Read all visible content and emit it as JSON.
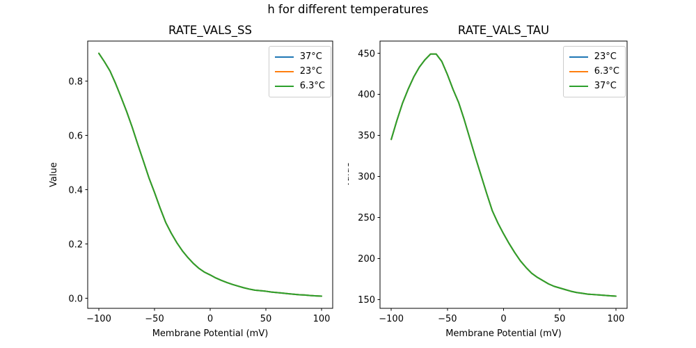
{
  "figure": {
    "title": "h for different temperatures"
  },
  "chart_data": [
    {
      "type": "line",
      "title": "RATE_VALS_SS",
      "xlabel": "Membrane Potential (mV)",
      "ylabel": "Value",
      "xlim": [
        -110,
        110
      ],
      "ylim": [
        -0.037,
        0.948
      ],
      "grid": false,
      "legend_position": "upper right",
      "xticks": {
        "values": [
          -100,
          -50,
          0,
          50,
          100
        ],
        "labels": [
          "−100",
          "−50",
          "0",
          "50",
          "100"
        ]
      },
      "yticks": {
        "values": [
          0.0,
          0.2,
          0.4,
          0.6,
          0.8
        ],
        "labels": [
          "0.0",
          "0.2",
          "0.4",
          "0.6",
          "0.8"
        ]
      },
      "x": [
        -100,
        -95,
        -90,
        -85,
        -80,
        -75,
        -70,
        -65,
        -60,
        -55,
        -50,
        -45,
        -40,
        -35,
        -30,
        -25,
        -20,
        -15,
        -10,
        -5,
        0,
        5,
        10,
        15,
        20,
        25,
        30,
        35,
        40,
        45,
        50,
        55,
        60,
        65,
        70,
        75,
        80,
        85,
        90,
        95,
        100
      ],
      "series": [
        {
          "name": "37°C",
          "color": "#1f77b4",
          "values": [
            0.903,
            0.872,
            0.838,
            0.792,
            0.741,
            0.688,
            0.63,
            0.567,
            0.506,
            0.444,
            0.39,
            0.333,
            0.28,
            0.24,
            0.205,
            0.175,
            0.15,
            0.128,
            0.11,
            0.096,
            0.086,
            0.075,
            0.066,
            0.058,
            0.051,
            0.045,
            0.039,
            0.034,
            0.03,
            0.028,
            0.026,
            0.023,
            0.021,
            0.019,
            0.017,
            0.015,
            0.013,
            0.012,
            0.01,
            0.009,
            0.008
          ]
        },
        {
          "name": "23°C",
          "color": "#ff7f0e",
          "values": [
            0.903,
            0.872,
            0.838,
            0.792,
            0.741,
            0.688,
            0.63,
            0.567,
            0.506,
            0.444,
            0.39,
            0.333,
            0.28,
            0.24,
            0.205,
            0.175,
            0.15,
            0.128,
            0.11,
            0.096,
            0.086,
            0.075,
            0.066,
            0.058,
            0.051,
            0.045,
            0.039,
            0.034,
            0.03,
            0.028,
            0.026,
            0.023,
            0.021,
            0.019,
            0.017,
            0.015,
            0.013,
            0.012,
            0.01,
            0.009,
            0.008
          ]
        },
        {
          "name": "6.3°C",
          "color": "#2ca02c",
          "values": [
            0.903,
            0.872,
            0.838,
            0.792,
            0.741,
            0.688,
            0.63,
            0.567,
            0.506,
            0.444,
            0.39,
            0.333,
            0.28,
            0.24,
            0.205,
            0.175,
            0.15,
            0.128,
            0.11,
            0.096,
            0.086,
            0.075,
            0.066,
            0.058,
            0.051,
            0.045,
            0.039,
            0.034,
            0.03,
            0.028,
            0.026,
            0.023,
            0.021,
            0.019,
            0.017,
            0.015,
            0.013,
            0.012,
            0.01,
            0.009,
            0.008
          ]
        }
      ],
      "note": "all three temperature curves overlap exactly; only the last-drawn green line is visible"
    },
    {
      "type": "line",
      "title": "RATE_VALS_TAU",
      "xlabel": "Membrane Potential (mV)",
      "ylabel": "Value",
      "xlim": [
        -110,
        110
      ],
      "ylim": [
        139.2,
        464.8
      ],
      "grid": false,
      "legend_position": "upper right",
      "xticks": {
        "values": [
          -100,
          -50,
          0,
          50,
          100
        ],
        "labels": [
          "−100",
          "−50",
          "0",
          "50",
          "100"
        ]
      },
      "yticks": {
        "values": [
          150,
          200,
          250,
          300,
          350,
          400,
          450
        ],
        "labels": [
          "150",
          "200",
          "250",
          "300",
          "350",
          "400",
          "450"
        ]
      },
      "x": [
        -100,
        -95,
        -90,
        -85,
        -80,
        -75,
        -70,
        -65,
        -60,
        -55,
        -50,
        -45,
        -40,
        -35,
        -30,
        -25,
        -20,
        -15,
        -10,
        -5,
        0,
        5,
        10,
        15,
        20,
        25,
        30,
        35,
        40,
        45,
        50,
        55,
        60,
        65,
        70,
        75,
        80,
        85,
        90,
        95,
        100
      ],
      "series": [
        {
          "name": "23°C",
          "color": "#1f77b4",
          "values": [
            345,
            368,
            389,
            406,
            421,
            433,
            442,
            449,
            449,
            440,
            424,
            406,
            390,
            369,
            346,
            323,
            301,
            279,
            258,
            243,
            230,
            218,
            207,
            197,
            189,
            182,
            177,
            173,
            169,
            166,
            164,
            162,
            160,
            158.5,
            157.5,
            156.5,
            156,
            155.5,
            155,
            154.5,
            154
          ]
        },
        {
          "name": "6.3°C",
          "color": "#ff7f0e",
          "values": [
            345,
            368,
            389,
            406,
            421,
            433,
            442,
            449,
            449,
            440,
            424,
            406,
            390,
            369,
            346,
            323,
            301,
            279,
            258,
            243,
            230,
            218,
            207,
            197,
            189,
            182,
            177,
            173,
            169,
            166,
            164,
            162,
            160,
            158.5,
            157.5,
            156.5,
            156,
            155.5,
            155,
            154.5,
            154
          ]
        },
        {
          "name": "37°C",
          "color": "#2ca02c",
          "values": [
            345,
            368,
            389,
            406,
            421,
            433,
            442,
            449,
            449,
            440,
            424,
            406,
            390,
            369,
            346,
            323,
            301,
            279,
            258,
            243,
            230,
            218,
            207,
            197,
            189,
            182,
            177,
            173,
            169,
            166,
            164,
            162,
            160,
            158.5,
            157.5,
            156.5,
            156,
            155.5,
            155,
            154.5,
            154
          ]
        }
      ],
      "note": "all three temperature curves overlap exactly; only the last-drawn green line is visible"
    }
  ]
}
